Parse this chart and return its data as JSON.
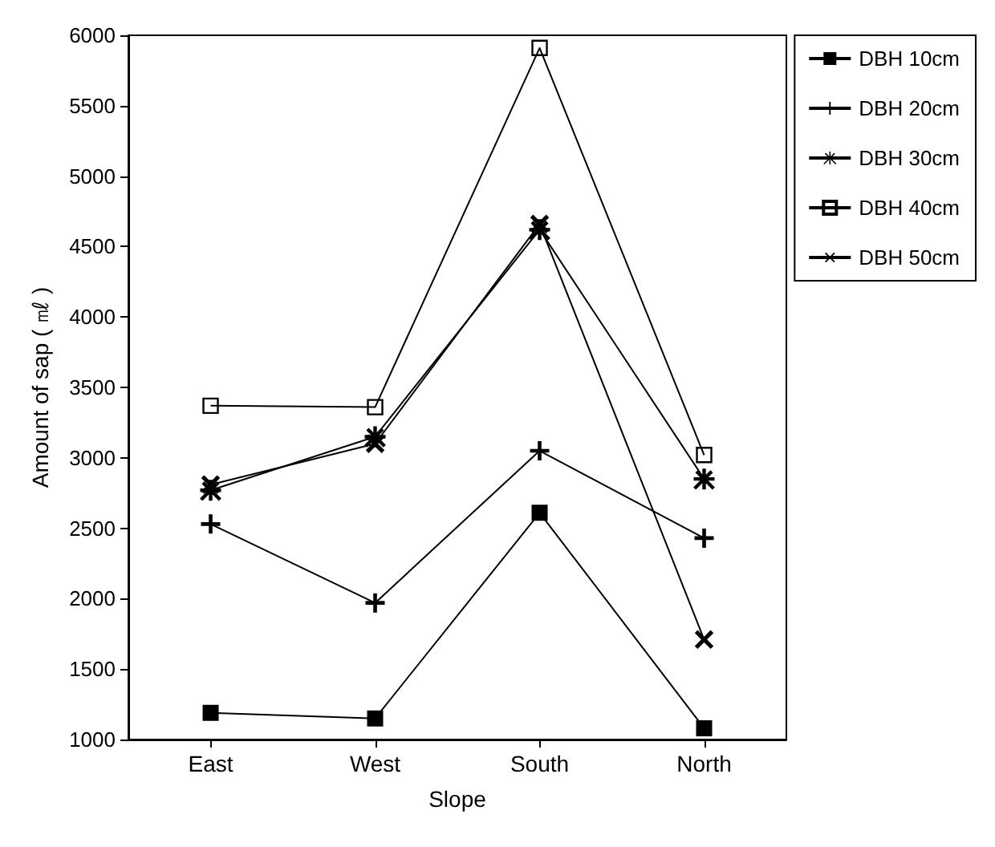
{
  "chart_data": {
    "type": "line",
    "xlabel": "Slope",
    "ylabel": "Amount of sap ( ㎖ )",
    "categories": [
      "East",
      "West",
      "South",
      "North"
    ],
    "ylim": [
      1000,
      6000
    ],
    "yticks": [
      1000,
      1500,
      2000,
      2500,
      3000,
      3500,
      4000,
      4500,
      5000,
      5500,
      6000
    ],
    "grid": false,
    "legend": "right",
    "line_style": "solid",
    "series": [
      {
        "name": "DBH 10cm",
        "color": "#000000",
        "marker": "square",
        "values": [
          1190,
          1150,
          2610,
          1080
        ]
      },
      {
        "name": "DBH 20cm",
        "color": "#000000",
        "marker": "cross",
        "values": [
          2530,
          1970,
          3050,
          2430
        ]
      },
      {
        "name": "DBH 30cm",
        "color": "#000000",
        "marker": "star",
        "values": [
          2770,
          3150,
          4620,
          2850
        ]
      },
      {
        "name": "DBH 40cm",
        "color": "#000000",
        "marker": "square-open",
        "values": [
          3370,
          3360,
          5910,
          3020
        ]
      },
      {
        "name": "DBH 50cm",
        "color": "#000000",
        "marker": "x",
        "values": [
          2810,
          3100,
          4660,
          1710
        ]
      }
    ]
  }
}
